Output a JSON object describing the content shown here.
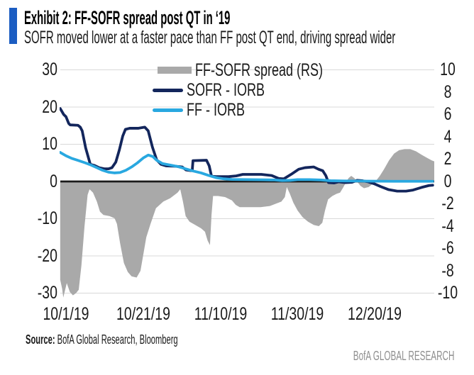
{
  "header": {
    "exhibit_title": "Exhibit 2: FF-SOFR spread post QT in ‘19",
    "subtitle": "SOFR moved lower at a faster pace than FF post QT end, driving spread wider",
    "accent_color": "#1b5dc2"
  },
  "footer": {
    "source_label": "Source:",
    "source_text": "BofA Global Research, Bloomberg",
    "brand": "BofA GLOBAL RESEARCH"
  },
  "chart_data": {
    "type": "combo",
    "title": "FF-SOFR spread post QT in '19",
    "legend_position": "top-center",
    "grid_color": "#d9d9d9",
    "zero_line_color": "#1a1a1a",
    "x_unit": "days since 10/1/19 (estimated from plot)",
    "x_day_zero_label": "10/1/19",
    "x_tick_labels": [
      "10/1/19",
      "10/21/19",
      "11/10/19",
      "11/30/19",
      "12/20/19"
    ],
    "x_tick_days": [
      0,
      20,
      40,
      60,
      80
    ],
    "left_axis": {
      "min": -30,
      "max": 30,
      "ticks": [
        30,
        20,
        10,
        0,
        -10,
        -20,
        -30
      ]
    },
    "right_axis": {
      "min": -10,
      "max": 10,
      "ticks": [
        10,
        8,
        6,
        4,
        2,
        0,
        -2,
        -4,
        -6,
        -8,
        -10
      ]
    },
    "series": [
      {
        "name": "FF-SOFR spread (RS)",
        "type": "area",
        "axis": "right",
        "color": "#a9a9a9",
        "points": [
          [
            -1.5,
            -8.8
          ],
          [
            -1,
            -9.6
          ],
          [
            -0.7,
            -10.4
          ],
          [
            0.2,
            -9.1
          ],
          [
            1,
            -9.9
          ],
          [
            1.8,
            -10.2
          ],
          [
            2.6,
            -10
          ],
          [
            3.3,
            -9.7
          ],
          [
            4,
            -7.5
          ],
          [
            4.8,
            -4
          ],
          [
            5.6,
            -1.2
          ],
          [
            6.1,
            -0.7
          ],
          [
            7,
            -1
          ],
          [
            8,
            -1.8
          ],
          [
            8.8,
            -2.7
          ],
          [
            9.7,
            -3
          ],
          [
            11.3,
            -3.1
          ],
          [
            12.6,
            -3.3
          ],
          [
            13.2,
            -3.8
          ],
          [
            14,
            -5.5
          ],
          [
            15,
            -7.3
          ],
          [
            16,
            -8.1
          ],
          [
            17,
            -8.5
          ],
          [
            18.3,
            -8.6
          ],
          [
            19.3,
            -8
          ],
          [
            20,
            -6.6
          ],
          [
            20.8,
            -5
          ],
          [
            21.9,
            -3.8
          ],
          [
            23.3,
            -2.4
          ],
          [
            25.2,
            -1.8
          ],
          [
            27,
            -1.5
          ],
          [
            28.9,
            -1
          ],
          [
            29.6,
            -0.7
          ],
          [
            30.3,
            -1.8
          ],
          [
            31,
            -3.1
          ],
          [
            32,
            -3.6
          ],
          [
            33.5,
            -3.9
          ],
          [
            35,
            -4.2
          ],
          [
            36,
            -4.5
          ],
          [
            36.7,
            -5.3
          ],
          [
            37.3,
            -5.7
          ],
          [
            37.7,
            -3
          ],
          [
            38.1,
            -1.3
          ],
          [
            39.4,
            -1.3
          ],
          [
            41.2,
            -1.4
          ],
          [
            43,
            -1.7
          ],
          [
            44,
            -2.1
          ],
          [
            45,
            -2.3
          ],
          [
            47.7,
            -2.3
          ],
          [
            50.4,
            -2.3
          ],
          [
            52.8,
            -2.2
          ],
          [
            54.3,
            -2
          ],
          [
            55.8,
            -1.8
          ],
          [
            56.7,
            -1.4
          ],
          [
            57.2,
            -0.5
          ],
          [
            58,
            -1.1
          ],
          [
            58.9,
            -1.9
          ],
          [
            60,
            -2.6
          ],
          [
            61.3,
            -3.2
          ],
          [
            62.7,
            -3.6
          ],
          [
            64.2,
            -3.9
          ],
          [
            65.5,
            -4
          ],
          [
            66.4,
            -3.7
          ],
          [
            67.1,
            -2.6
          ],
          [
            67.9,
            -1.6
          ],
          [
            69,
            -1.3
          ],
          [
            70.1,
            -1.1
          ],
          [
            71,
            -1
          ],
          [
            71.7,
            -0.6
          ],
          [
            72.5,
            -0.1
          ],
          [
            73.2,
            0.3
          ],
          [
            73.9,
            0.5
          ],
          [
            74.7,
            0.3
          ],
          [
            75.4,
            0
          ],
          [
            76.3,
            -0.4
          ],
          [
            77.2,
            -0.6
          ],
          [
            78.4,
            -0.5
          ],
          [
            79.5,
            -0.2
          ],
          [
            80.4,
            0.1
          ],
          [
            81.3,
            0.5
          ],
          [
            82.4,
            1.1
          ],
          [
            83.7,
            1.9
          ],
          [
            85,
            2.5
          ],
          [
            86.3,
            2.8
          ],
          [
            87.7,
            2.9
          ],
          [
            89.2,
            2.9
          ],
          [
            90.7,
            2.7
          ],
          [
            92.1,
            2.4
          ],
          [
            93.6,
            2.1
          ],
          [
            94.7,
            1.9
          ],
          [
            95.4,
            1.8
          ]
        ]
      },
      {
        "name": "SOFR - IORB",
        "type": "line",
        "axis": "left",
        "color": "#13265c",
        "points": [
          [
            -1.5,
            19.6
          ],
          [
            -0.6,
            18
          ],
          [
            0,
            17.4
          ],
          [
            0.7,
            15.6
          ],
          [
            1.1,
            15.2
          ],
          [
            3.1,
            15.1
          ],
          [
            3.7,
            14.6
          ],
          [
            4.2,
            13.6
          ],
          [
            5.1,
            9
          ],
          [
            6.3,
            4.6
          ],
          [
            7.4,
            4.3
          ],
          [
            8.6,
            3.7
          ],
          [
            9.9,
            3.4
          ],
          [
            11,
            3.4
          ],
          [
            11.9,
            3.7
          ],
          [
            12.9,
            5.2
          ],
          [
            13.8,
            8.4
          ],
          [
            14.7,
            12.2
          ],
          [
            15.4,
            14
          ],
          [
            16.5,
            14.3
          ],
          [
            18.8,
            14.3
          ],
          [
            20.4,
            14.6
          ],
          [
            21.3,
            13.6
          ],
          [
            22.4,
            9.2
          ],
          [
            23.5,
            5.8
          ],
          [
            24.6,
            4.6
          ],
          [
            25.9,
            4.2
          ],
          [
            28.3,
            4.1
          ],
          [
            30.1,
            3.9
          ],
          [
            31.1,
            3.1
          ],
          [
            32.4,
            2.9
          ],
          [
            32.7,
            2.9
          ],
          [
            32.9,
            5.6
          ],
          [
            36.4,
            5.7
          ],
          [
            37.1,
            4.2
          ],
          [
            37.7,
            1.4
          ],
          [
            39,
            1.3
          ],
          [
            42.1,
            1.3
          ],
          [
            44.1,
            1.5
          ],
          [
            45.8,
            1.9
          ],
          [
            50.6,
            1.9
          ],
          [
            53.3,
            1.6
          ],
          [
            55.1,
            0.8
          ],
          [
            56.4,
            0.7
          ],
          [
            58.3,
            1.9
          ],
          [
            60.3,
            3.3
          ],
          [
            61.9,
            3.7
          ],
          [
            64.2,
            3.9
          ],
          [
            65.4,
            3.3
          ],
          [
            66.5,
            2.9
          ],
          [
            67.3,
            1.6
          ],
          [
            68,
            -0.3
          ],
          [
            69.5,
            -0.4
          ],
          [
            70.6,
            -0.1
          ],
          [
            72.4,
            -0.3
          ],
          [
            74.1,
            -0.2
          ],
          [
            75.4,
            0.3
          ],
          [
            76.8,
            0.2
          ],
          [
            78.3,
            -0.1
          ],
          [
            79.8,
            -0.6
          ],
          [
            81.6,
            -1.4
          ],
          [
            83.6,
            -2.2
          ],
          [
            85.8,
            -2.6
          ],
          [
            88.1,
            -2.6
          ],
          [
            89.9,
            -2.3
          ],
          [
            92.1,
            -1.6
          ],
          [
            94,
            -1.1
          ],
          [
            95,
            -1
          ]
        ]
      },
      {
        "name": "FF - IORB",
        "type": "line",
        "axis": "left",
        "color": "#29a8e0",
        "points": [
          [
            -1.5,
            7.8
          ],
          [
            0,
            6.9
          ],
          [
            1.5,
            6.2
          ],
          [
            3,
            5.7
          ],
          [
            5,
            5
          ],
          [
            6.5,
            4.4
          ],
          [
            8,
            3.7
          ],
          [
            9.5,
            3
          ],
          [
            11,
            2.5
          ],
          [
            12.5,
            2.3
          ],
          [
            14,
            2.4
          ],
          [
            15.5,
            3
          ],
          [
            17,
            3.9
          ],
          [
            18.5,
            5
          ],
          [
            20,
            6.3
          ],
          [
            21.3,
            7.1
          ],
          [
            22.5,
            6.7
          ],
          [
            23.5,
            5.7
          ],
          [
            25,
            4.8
          ],
          [
            27,
            4.4
          ],
          [
            29,
            4
          ],
          [
            31,
            3.4
          ],
          [
            33,
            2.8
          ],
          [
            35,
            2.3
          ],
          [
            37,
            1.6
          ],
          [
            39,
            1
          ],
          [
            41,
            0.7
          ],
          [
            43,
            0.55
          ],
          [
            47,
            0.5
          ],
          [
            51,
            0.45
          ],
          [
            54,
            0.4
          ],
          [
            56,
            0.25
          ],
          [
            58,
            0.3
          ],
          [
            60,
            0.5
          ],
          [
            63,
            0.5
          ],
          [
            66,
            0.4
          ],
          [
            68.5,
            0.2
          ],
          [
            72,
            0.15
          ],
          [
            78,
            0.1
          ],
          [
            85,
            0.05
          ],
          [
            95,
            0.05
          ]
        ]
      }
    ]
  }
}
